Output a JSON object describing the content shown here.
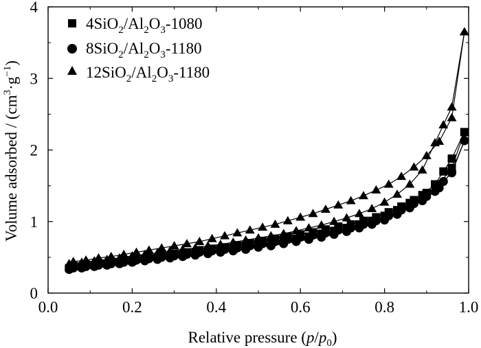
{
  "chart_data": {
    "type": "line",
    "xlabel": "Relative pressure (p/p0)",
    "ylabel": "Volume adsorbed / (cm3·g−1)",
    "xlim": [
      0.0,
      1.0
    ],
    "ylim": [
      0,
      4
    ],
    "xticks": [
      "0.0",
      "0.2",
      "0.4",
      "0.6",
      "0.8",
      "1.0"
    ],
    "yticks": [
      "0",
      "1",
      "2",
      "3",
      "4"
    ],
    "legend_position": "top-left",
    "grid": false,
    "series": [
      {
        "name": "4SiO2/Al2O3-1080",
        "marker": "square",
        "adsorption": {
          "x": [
            0.05,
            0.08,
            0.11,
            0.14,
            0.17,
            0.2,
            0.23,
            0.26,
            0.29,
            0.32,
            0.35,
            0.38,
            0.41,
            0.44,
            0.47,
            0.5,
            0.53,
            0.56,
            0.59,
            0.62,
            0.65,
            0.68,
            0.71,
            0.74,
            0.77,
            0.8,
            0.83,
            0.86,
            0.89,
            0.92,
            0.94,
            0.96,
            0.99
          ],
          "y": [
            0.35,
            0.37,
            0.39,
            0.41,
            0.43,
            0.45,
            0.48,
            0.5,
            0.52,
            0.54,
            0.56,
            0.58,
            0.61,
            0.63,
            0.65,
            0.68,
            0.7,
            0.73,
            0.76,
            0.79,
            0.83,
            0.87,
            0.91,
            0.96,
            1.01,
            1.08,
            1.16,
            1.26,
            1.37,
            1.52,
            1.7,
            1.88,
            2.25
          ]
        },
        "desorption": {
          "x": [
            0.99,
            0.96,
            0.93,
            0.9,
            0.87,
            0.84,
            0.81,
            0.78,
            0.75,
            0.72,
            0.69,
            0.66,
            0.63,
            0.6,
            0.57,
            0.54,
            0.51,
            0.48,
            0.45,
            0.42,
            0.39,
            0.36,
            0.33,
            0.3,
            0.27,
            0.24,
            0.21,
            0.18,
            0.15,
            0.12,
            0.09,
            0.06
          ],
          "y": [
            2.25,
            1.75,
            1.52,
            1.4,
            1.3,
            1.21,
            1.13,
            1.06,
            1.01,
            0.96,
            0.93,
            0.89,
            0.85,
            0.82,
            0.79,
            0.76,
            0.73,
            0.7,
            0.67,
            0.64,
            0.62,
            0.6,
            0.57,
            0.55,
            0.53,
            0.51,
            0.48,
            0.46,
            0.44,
            0.42,
            0.4,
            0.38
          ]
        }
      },
      {
        "name": "8SiO2/Al2O3-1180",
        "marker": "circle",
        "adsorption": {
          "x": [
            0.05,
            0.08,
            0.11,
            0.14,
            0.17,
            0.2,
            0.23,
            0.26,
            0.29,
            0.32,
            0.35,
            0.38,
            0.41,
            0.44,
            0.47,
            0.5,
            0.53,
            0.56,
            0.59,
            0.62,
            0.65,
            0.68,
            0.71,
            0.74,
            0.77,
            0.8,
            0.83,
            0.86,
            0.89,
            0.92,
            0.94,
            0.96,
            0.99
          ],
          "y": [
            0.33,
            0.35,
            0.37,
            0.39,
            0.41,
            0.43,
            0.45,
            0.47,
            0.49,
            0.51,
            0.53,
            0.55,
            0.57,
            0.59,
            0.61,
            0.64,
            0.66,
            0.69,
            0.72,
            0.75,
            0.78,
            0.82,
            0.86,
            0.91,
            0.96,
            1.02,
            1.1,
            1.19,
            1.29,
            1.42,
            1.56,
            1.68,
            2.13
          ]
        },
        "desorption": {
          "x": [
            0.99,
            0.96,
            0.93,
            0.9,
            0.87,
            0.84,
            0.81,
            0.78,
            0.75,
            0.72,
            0.69,
            0.66,
            0.63,
            0.6,
            0.57,
            0.54,
            0.51,
            0.48,
            0.45,
            0.42,
            0.39,
            0.36,
            0.33,
            0.3,
            0.27,
            0.24,
            0.21,
            0.18,
            0.15,
            0.12,
            0.09,
            0.06
          ],
          "y": [
            2.13,
            1.7,
            1.47,
            1.35,
            1.25,
            1.16,
            1.08,
            1.01,
            0.96,
            0.91,
            0.88,
            0.84,
            0.81,
            0.78,
            0.75,
            0.72,
            0.69,
            0.66,
            0.63,
            0.61,
            0.59,
            0.57,
            0.54,
            0.52,
            0.5,
            0.48,
            0.46,
            0.43,
            0.41,
            0.39,
            0.37,
            0.35
          ]
        }
      },
      {
        "name": "12SiO2/Al2O3-1180",
        "marker": "triangle",
        "adsorption": {
          "x": [
            0.05,
            0.08,
            0.11,
            0.14,
            0.17,
            0.2,
            0.23,
            0.26,
            0.29,
            0.32,
            0.35,
            0.38,
            0.41,
            0.44,
            0.47,
            0.5,
            0.53,
            0.56,
            0.59,
            0.62,
            0.65,
            0.68,
            0.71,
            0.74,
            0.77,
            0.8,
            0.83,
            0.86,
            0.89,
            0.92,
            0.94,
            0.96,
            0.99
          ],
          "y": [
            0.41,
            0.43,
            0.45,
            0.47,
            0.49,
            0.52,
            0.54,
            0.56,
            0.59,
            0.61,
            0.63,
            0.66,
            0.68,
            0.71,
            0.74,
            0.77,
            0.8,
            0.83,
            0.87,
            0.91,
            0.95,
            1.0,
            1.05,
            1.11,
            1.18,
            1.27,
            1.38,
            1.52,
            1.72,
            2.1,
            2.35,
            2.6,
            3.65
          ]
        },
        "desorption": {
          "x": [
            0.99,
            0.96,
            0.93,
            0.9,
            0.87,
            0.84,
            0.81,
            0.78,
            0.75,
            0.72,
            0.69,
            0.66,
            0.63,
            0.6,
            0.57,
            0.54,
            0.51,
            0.48,
            0.45,
            0.42,
            0.39,
            0.36,
            0.33,
            0.3,
            0.27,
            0.24,
            0.21,
            0.18,
            0.15,
            0.12,
            0.09,
            0.06
          ],
          "y": [
            3.65,
            2.45,
            2.12,
            1.92,
            1.76,
            1.63,
            1.52,
            1.44,
            1.36,
            1.29,
            1.23,
            1.17,
            1.11,
            1.06,
            1.01,
            0.96,
            0.92,
            0.88,
            0.84,
            0.8,
            0.76,
            0.72,
            0.69,
            0.66,
            0.63,
            0.6,
            0.57,
            0.54,
            0.51,
            0.49,
            0.46,
            0.44
          ]
        }
      }
    ]
  }
}
